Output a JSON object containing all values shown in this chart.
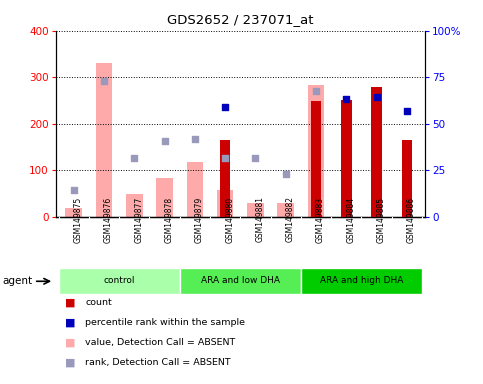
{
  "title": "GDS2652 / 237071_at",
  "samples": [
    "GSM149875",
    "GSM149876",
    "GSM149877",
    "GSM149878",
    "GSM149879",
    "GSM149880",
    "GSM149881",
    "GSM149882",
    "GSM149883",
    "GSM149884",
    "GSM149885",
    "GSM149886"
  ],
  "red_bars": [
    null,
    null,
    null,
    null,
    null,
    165,
    null,
    null,
    248,
    252,
    280,
    165
  ],
  "pink_bars": [
    20,
    330,
    50,
    83,
    118,
    58,
    30,
    30,
    283,
    null,
    null,
    null
  ],
  "blue_squares_left": [
    null,
    null,
    null,
    null,
    null,
    237,
    null,
    null,
    null,
    253,
    258,
    227
  ],
  "lavender_squares_left": [
    58,
    292,
    127,
    163,
    168,
    127,
    127,
    92,
    270,
    null,
    null,
    null
  ],
  "ylim_left": [
    0,
    400
  ],
  "ylim_right": [
    0,
    100
  ],
  "yticks_left": [
    0,
    100,
    200,
    300,
    400
  ],
  "yticks_right": [
    0,
    25,
    50,
    75,
    100
  ],
  "ytick_labels_right": [
    "0",
    "25",
    "50",
    "75",
    "100%"
  ],
  "pink_bar_width": 0.55,
  "red_bar_width": 0.35,
  "red_color": "#cc0000",
  "pink_color": "#ffaaaa",
  "blue_color": "#0000bb",
  "lavender_color": "#9999bb",
  "group_colors": [
    "#aaffaa",
    "#55ee55",
    "#00cc00"
  ],
  "group_labels": [
    "control",
    "ARA and low DHA",
    "ARA and high DHA"
  ],
  "group_ranges": [
    [
      0,
      4
    ],
    [
      4,
      8
    ],
    [
      8,
      12
    ]
  ],
  "legend_items": [
    {
      "color": "#cc0000",
      "label": "count"
    },
    {
      "color": "#0000bb",
      "label": "percentile rank within the sample"
    },
    {
      "color": "#ffaaaa",
      "label": "value, Detection Call = ABSENT"
    },
    {
      "color": "#9999bb",
      "label": "rank, Detection Call = ABSENT"
    }
  ]
}
